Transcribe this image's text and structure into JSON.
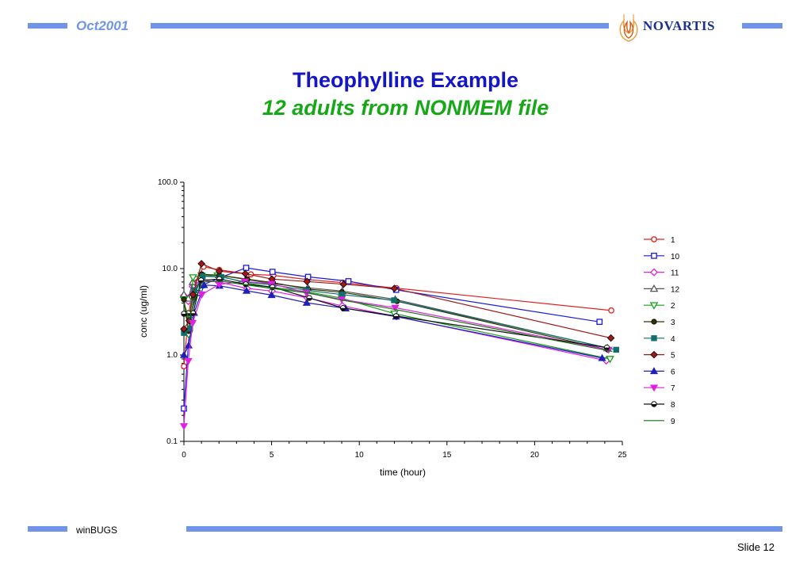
{
  "header": {
    "date_label": "Oct2001",
    "logo_text": "NOVARTIS"
  },
  "slide": {
    "title": "Theophylline Example",
    "subtitle": "12 adults from NONMEM file"
  },
  "footer": {
    "left_label": "winBUGS",
    "slide_number": "Slide 12"
  },
  "colors": {
    "header_bar": "#6f94e8",
    "title": "#1515c8",
    "subtitle": "#16a816"
  },
  "chart_data": {
    "type": "line",
    "xlabel": "time (hour)",
    "ylabel": "conc (ug/ml)",
    "xlim": [
      0,
      25
    ],
    "ylim": [
      0.1,
      100
    ],
    "yscale": "log",
    "xticks": [
      0,
      5,
      10,
      15,
      20,
      25
    ],
    "yticks": [
      0.1,
      1.0,
      10.0,
      100.0
    ],
    "ytick_labels": [
      "0.1",
      "1.0",
      "10.0",
      "100.0"
    ],
    "legend_position": "right",
    "series": [
      {
        "name": "1",
        "color": "#e02020",
        "marker": "circle-open",
        "x": [
          0,
          0.25,
          0.57,
          1.12,
          2.02,
          3.82,
          5.1,
          7.03,
          9.05,
          12.12,
          24.37
        ],
        "y": [
          0.74,
          2.84,
          6.57,
          10.5,
          9.66,
          8.58,
          8.36,
          7.47,
          6.89,
          5.94,
          3.28
        ]
      },
      {
        "name": "10",
        "color": "#1a1ad8",
        "marker": "square-open",
        "x": [
          0,
          0.37,
          0.77,
          1.02,
          2.05,
          3.55,
          5.05,
          7.08,
          9.38,
          12.1,
          23.7
        ],
        "y": [
          0.24,
          2.89,
          5.22,
          6.41,
          7.83,
          10.21,
          9.18,
          8.02,
          7.14,
          5.68,
          2.42
        ]
      },
      {
        "name": "11",
        "color": "#e020e0",
        "marker": "diamond-open",
        "x": [
          0,
          0.25,
          0.5,
          0.98,
          1.98,
          3.6,
          5.02,
          7.03,
          9.03,
          12.12,
          24.08
        ],
        "y": [
          4.86,
          4.2,
          6.2,
          7.4,
          7.0,
          5.9,
          5.5,
          4.6,
          3.7,
          2.8,
          0.86
        ]
      },
      {
        "name": "12",
        "color": "#555555",
        "marker": "triangle-open",
        "x": [
          0,
          0.25,
          0.5,
          1.0,
          2.0,
          3.52,
          5.07,
          7.07,
          9.03,
          12.05,
          24.15
        ],
        "y": [
          5.0,
          4.5,
          7.0,
          8.2,
          8.4,
          7.5,
          6.7,
          6.0,
          5.5,
          4.4,
          1.2
        ]
      },
      {
        "name": "2",
        "color": "#15a015",
        "marker": "triangle-down-open",
        "x": [
          0,
          0.27,
          0.52,
          1.0,
          1.92,
          3.5,
          5.02,
          7.03,
          9.0,
          12.0,
          24.3
        ],
        "y": [
          4.4,
          1.72,
          7.91,
          8.31,
          8.33,
          6.85,
          6.08,
          5.4,
          4.55,
          3.01,
          0.9
        ]
      },
      {
        "name": "3",
        "color": "#333300",
        "marker": "circle-filled",
        "x": [
          0,
          0.27,
          0.58,
          1.02,
          2.02,
          3.62,
          5.08,
          7.07,
          9.0,
          12.15,
          24.17
        ],
        "y": [
          4.4,
          1.89,
          4.6,
          8.6,
          8.38,
          7.54,
          6.88,
          5.78,
          5.33,
          4.19,
          1.15
        ]
      },
      {
        "name": "4",
        "color": "#0f6f6f",
        "marker": "square-filled",
        "x": [
          0,
          0.35,
          0.6,
          1.07,
          2.13,
          3.5,
          5.02,
          7.02,
          9.02,
          11.98,
          24.65
        ],
        "y": [
          1.8,
          2.02,
          5.63,
          8.15,
          8.0,
          7.0,
          6.5,
          5.6,
          5.0,
          4.3,
          1.15
        ]
      },
      {
        "name": "5",
        "color": "#a01818",
        "marker": "diamond-filled",
        "x": [
          0,
          0.3,
          0.52,
          1.0,
          2.02,
          3.5,
          5.02,
          7.02,
          9.1,
          12.0,
          24.35
        ],
        "y": [
          2.0,
          2.5,
          5.0,
          11.4,
          9.33,
          8.74,
          7.56,
          7.09,
          6.59,
          5.9,
          1.57
        ]
      },
      {
        "name": "6",
        "color": "#2020b8",
        "marker": "triangle-filled",
        "x": [
          0,
          0.27,
          0.58,
          1.15,
          2.03,
          3.57,
          5.0,
          7.0,
          9.22,
          12.1,
          23.85
        ],
        "y": [
          1.0,
          1.29,
          3.08,
          6.44,
          6.32,
          5.53,
          4.94,
          4.02,
          3.46,
          2.78,
          0.92
        ]
      },
      {
        "name": "7",
        "color": "#e020e0",
        "marker": "triangle-down-filled",
        "x": [
          0,
          0.25,
          0.5,
          1.02,
          2.02,
          3.48,
          5.0,
          6.98,
          9.0,
          12.05,
          24.22
        ],
        "y": [
          0.15,
          0.85,
          2.35,
          5.02,
          6.58,
          7.09,
          6.66,
          5.25,
          4.39,
          3.53,
          1.15
        ]
      },
      {
        "name": "8",
        "color": "#111111",
        "marker": "circle-half",
        "x": [
          0,
          0.25,
          0.52,
          0.98,
          2.02,
          3.53,
          5.05,
          7.15,
          9.07,
          12.1,
          24.12
        ],
        "y": [
          3.0,
          3.05,
          3.05,
          7.31,
          7.56,
          6.59,
          6.11,
          4.57,
          3.5,
          2.82,
          1.22
        ]
      },
      {
        "name": "9",
        "color": "#157015",
        "marker": "none",
        "x": [
          0,
          0.3,
          0.63,
          1.05,
          2.02,
          3.53,
          5.02,
          7.17,
          8.8,
          11.6,
          24.43
        ],
        "y": [
          4.0,
          2.6,
          4.4,
          7.0,
          7.2,
          6.5,
          5.9,
          5.2,
          4.4,
          3.5,
          1.1
        ]
      }
    ]
  }
}
